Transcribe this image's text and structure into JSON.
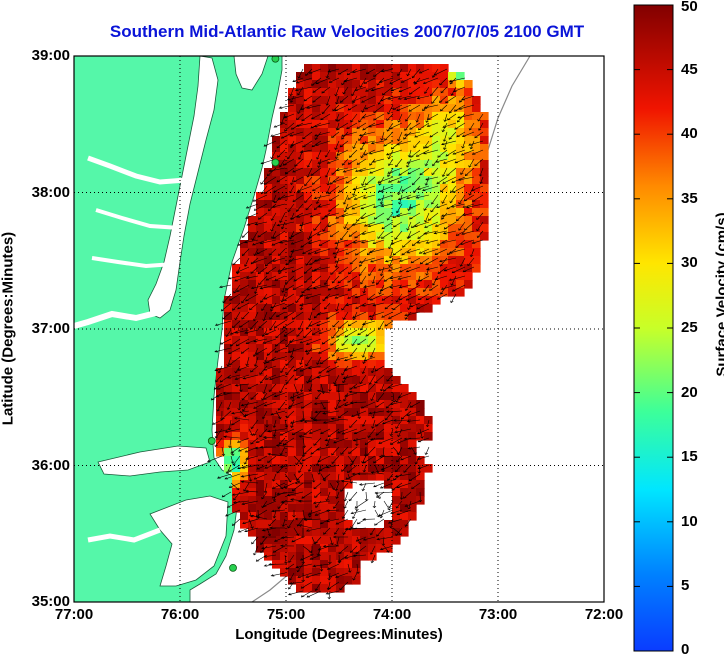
{
  "title": "Southern Mid-Atlantic Raw Velocities 2007/07/05 2100 GMT",
  "xlabel": "Longitude (Degrees:Minutes)",
  "ylabel": "Latitude (Degrees:Minutes)",
  "colorbar_label": "Surface Velocity (cm/s)",
  "x_ticks": [
    "77:00",
    "76:00",
    "75:00",
    "74:00",
    "73:00",
    "72:00"
  ],
  "y_ticks": [
    "39:00",
    "38:00",
    "37:00",
    "36:00",
    "35:00"
  ],
  "colorbar_ticks": [
    "0",
    "5",
    "10",
    "15",
    "20",
    "25",
    "30",
    "35",
    "40",
    "45",
    "50"
  ],
  "map": {
    "lon_range": [
      -77,
      -72
    ],
    "lat_range": [
      35,
      39
    ],
    "colorbar_range_cms": [
      0,
      50
    ],
    "colormap": "jet",
    "colors": {
      "land": "#55f7a9",
      "water": "#ffffff",
      "station": "#28d050",
      "title": "#0a14d8"
    },
    "grid": "dotted",
    "stations": [
      {
        "lon": -75.1,
        "lat": 38.98
      },
      {
        "lon": -75.1,
        "lat": 38.22
      },
      {
        "lon": -75.7,
        "lat": 36.18
      },
      {
        "lon": -75.5,
        "lat": 35.25
      }
    ]
  }
}
